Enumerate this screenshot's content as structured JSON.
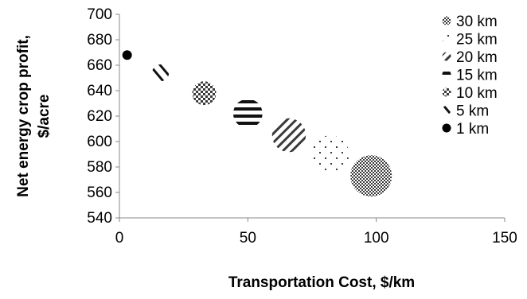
{
  "chart_data": {
    "type": "scatter",
    "bubble": true,
    "xlabel": "Transportation Cost, $/km",
    "ylabel_lines": [
      "Net energy crop profit,",
      "$/acre"
    ],
    "xlim": [
      0,
      150
    ],
    "ylim": [
      540,
      700
    ],
    "xticks": [
      "0",
      "50",
      "100",
      "150"
    ],
    "yticks": [
      "540",
      "560",
      "580",
      "600",
      "620",
      "640",
      "660",
      "680",
      "700"
    ],
    "grid": false,
    "legend_position": "right",
    "series": [
      {
        "name": "30 km",
        "x": 98,
        "y": 573,
        "size": 30,
        "pattern": "fine-checker",
        "color": "#3a3a3a"
      },
      {
        "name": "25 km",
        "x": 82,
        "y": 590,
        "size": 25,
        "pattern": "sparse-dots",
        "color": "#3a3a3a"
      },
      {
        "name": "20 km",
        "x": 66,
        "y": 605,
        "size": 20,
        "pattern": "diagonal-stripes",
        "color": "#3a3a3a"
      },
      {
        "name": "15 km",
        "x": 50,
        "y": 622,
        "size": 15,
        "pattern": "horizontal-stripes",
        "color": "#111111"
      },
      {
        "name": "10 km",
        "x": 33,
        "y": 638,
        "size": 10,
        "pattern": "checker",
        "color": "#3a3a3a"
      },
      {
        "name": "5 km",
        "x": 16,
        "y": 654,
        "size": 5,
        "pattern": "wide-diagonal",
        "color": "#111111"
      },
      {
        "name": "1 km",
        "x": 3,
        "y": 668,
        "size": 1,
        "pattern": "solid",
        "color": "#000000"
      }
    ]
  }
}
